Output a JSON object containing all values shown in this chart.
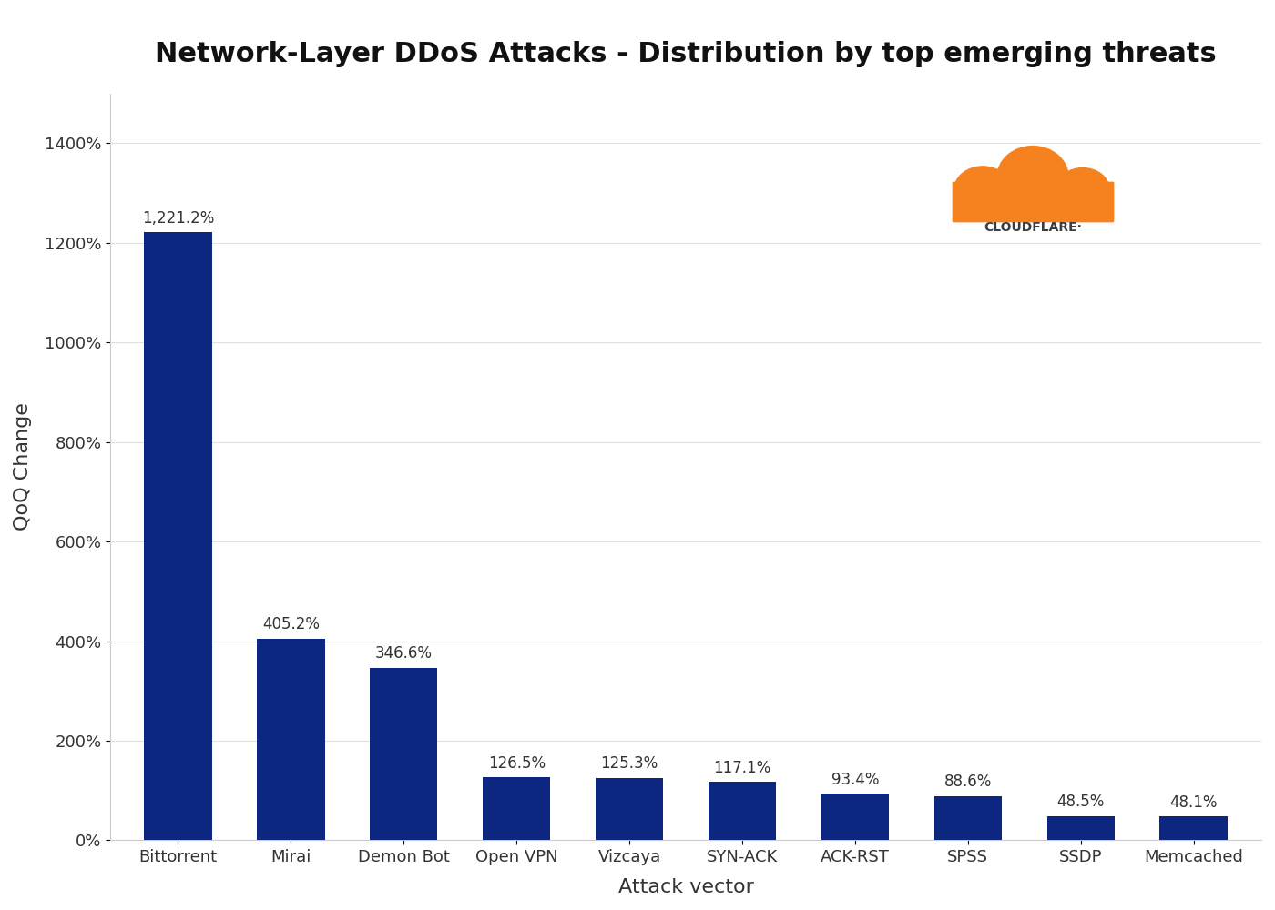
{
  "title": "Network-Layer DDoS Attacks - Distribution by top emerging threats",
  "xlabel": "Attack vector",
  "ylabel": "QoQ Change",
  "categories": [
    "Bittorrent",
    "Mirai",
    "Demon Bot",
    "Open VPN",
    "Vizcaya",
    "SYN-ACK",
    "ACK-RST",
    "SPSS",
    "SSDP",
    "Memcached"
  ],
  "values": [
    1221.2,
    405.2,
    346.6,
    126.5,
    125.3,
    117.1,
    93.4,
    88.6,
    48.5,
    48.1
  ],
  "labels": [
    "1,221.2%",
    "405.2%",
    "346.6%",
    "126.5%",
    "125.3%",
    "117.1%",
    "93.4%",
    "88.6%",
    "48.5%",
    "48.1%"
  ],
  "bar_color": "#0d2680",
  "background_color": "#ffffff",
  "ylim": [
    0,
    1500
  ],
  "yticks": [
    0,
    200,
    400,
    600,
    800,
    1000,
    1200,
    1400
  ],
  "ytick_labels": [
    "0%",
    "200%",
    "400%",
    "600%",
    "800%",
    "1000%",
    "1200%",
    "1400%"
  ],
  "title_fontsize": 22,
  "axis_label_fontsize": 16,
  "tick_fontsize": 13,
  "bar_label_fontsize": 12,
  "cloudflare_text": "CLOUDFLARE·",
  "cloudflare_color": "#3d3d3d",
  "cloud_color": "#F6821F",
  "grid_color": "#e0e0e0"
}
